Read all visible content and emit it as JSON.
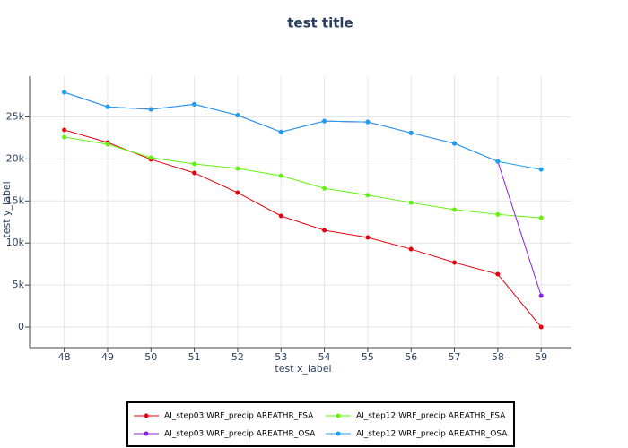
{
  "chart_data": {
    "type": "line",
    "title": "test title",
    "x_label": "test x_label",
    "y_label": "test y_label",
    "x": [
      48,
      49,
      50,
      51,
      52,
      53,
      54,
      55,
      56,
      57,
      58,
      59
    ],
    "xlim": [
      47.2,
      59.7
    ],
    "xticks": [
      48,
      49,
      50,
      51,
      52,
      53,
      54,
      55,
      56,
      57,
      58,
      59
    ],
    "ylim": [
      -2450,
      29850
    ],
    "yticks": [
      0,
      {
        "value": 5000,
        "label": "5k"
      },
      {
        "value": 10000,
        "label": "10k"
      },
      {
        "value": 15000,
        "label": "15k"
      },
      {
        "value": 20000,
        "label": "20k"
      },
      {
        "value": 25000,
        "label": "25k"
      }
    ],
    "grid": true,
    "series": [
      {
        "name": "AI_step03 WRF_precip AREATHR_FSA",
        "color": "#e8000b",
        "values": [
          23450,
          21960,
          19940,
          18340,
          15990,
          13220,
          11510,
          10660,
          9270,
          7680,
          6290,
          0
        ]
      },
      {
        "name": "AI_step12 WRF_precip AREATHR_FSA",
        "color": "#5ff50a",
        "values": [
          22600,
          21750,
          20150,
          19400,
          18870,
          18000,
          16500,
          15700,
          14800,
          13970,
          13400,
          13000
        ]
      },
      {
        "name": "AI_step03 WRF_precip AREATHR_OSA",
        "color": "#8b1ee0",
        "values": [
          27930,
          26200,
          25900,
          26500,
          25200,
          23200,
          24500,
          24400,
          23100,
          21850,
          19700,
          3730
        ]
      },
      {
        "name": "AI_step12 WRF_precip AREATHR_OSA",
        "color": "#1ba1f2",
        "values": [
          27930,
          26200,
          25900,
          26500,
          25200,
          23200,
          24500,
          24400,
          23100,
          21850,
          19700,
          18750
        ]
      }
    ]
  }
}
